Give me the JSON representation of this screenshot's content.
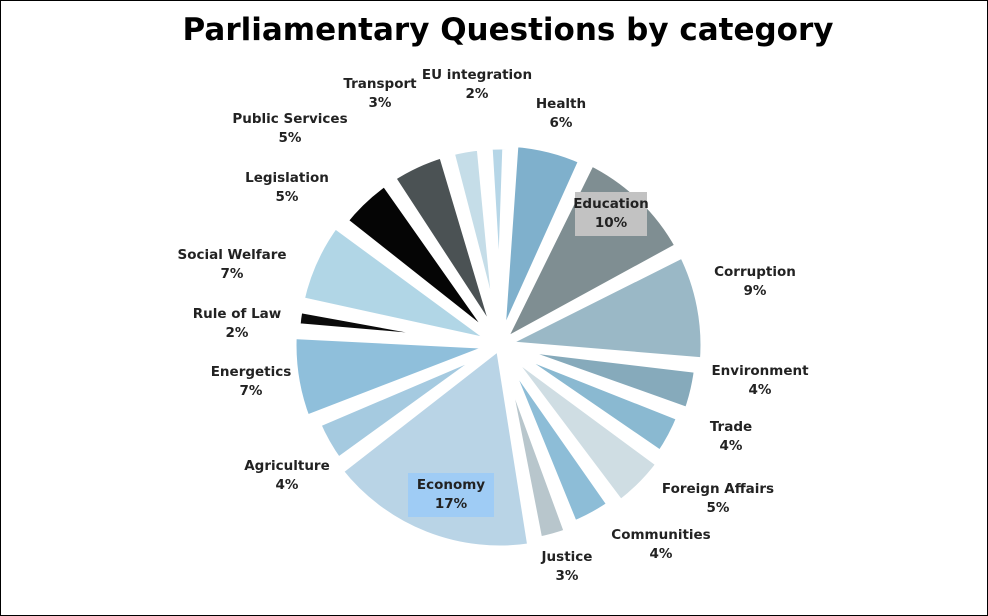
{
  "chart_data": {
    "type": "pie",
    "title": "Parliamentary Questions by category",
    "categories": [
      "Health",
      "Education",
      "Corruption",
      "Environment",
      "Trade",
      "Foreign Affairs",
      "Communities",
      "Justice",
      "Economy",
      "Agriculture",
      "Energetics",
      "Rule of Law",
      "Social Welfare",
      "Legislation",
      "Public Services",
      "Transport",
      "EU integration"
    ],
    "values": [
      6,
      10,
      9,
      4,
      4,
      5,
      4,
      3,
      17,
      4,
      7,
      2,
      7,
      5,
      5,
      3,
      2
    ],
    "value_labels": [
      "6%",
      "10%",
      "9%",
      "4%",
      "4%",
      "5%",
      "4%",
      "3%",
      "17%",
      "4%",
      "7%",
      "2%",
      "7%",
      "5%",
      "5%",
      "3%",
      "2%"
    ],
    "colors": [
      "#7fb0cc",
      "#7f8e92",
      "#9ab8c6",
      "#86aabb",
      "#8ab9d1",
      "#cfdde3",
      "#8dbdd7",
      "#b8c6cc",
      "#b9d4e6",
      "#a5cae0",
      "#8fbfdb",
      "#0b0b0b",
      "#b1d6e6",
      "#050505",
      "#4b5254",
      "#c5dde8",
      "#b6d6e7"
    ],
    "highlighted": {
      "Education": "#c2c2c2",
      "Economy": "#9fccf5"
    },
    "legend": "labels-around-slices"
  }
}
